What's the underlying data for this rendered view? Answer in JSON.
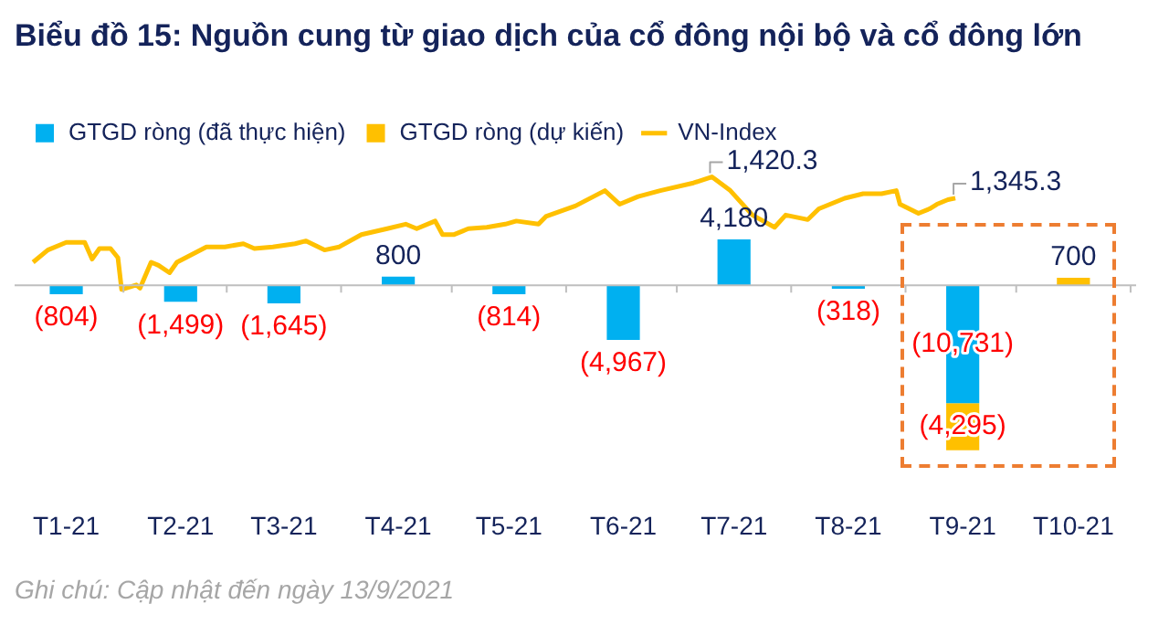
{
  "chart_data": {
    "type": "bar",
    "title": "Biểu đồ 15: Nguồn cung từ giao dịch của cổ đông nội bộ và cổ đông lớn",
    "stacked": true,
    "legend": "top left",
    "tick_labels": "x",
    "x": [
      "2021-01-15",
      "2021-02-15",
      "2021-03-15",
      "2021-04-15",
      "2021-05-15",
      "2021-06-15",
      "2021-07-15",
      "2021-08-15",
      "2021-09-15",
      "2021-10-15"
    ],
    "xlim": [
      "2021-01-01",
      "2021-11-01"
    ],
    "xticks": [
      {
        "value": "2021-01-15",
        "label": "T1-21"
      },
      {
        "value": "2021-02-15",
        "label": "T2-21"
      },
      {
        "value": "2021-03-15",
        "label": "T3-21"
      },
      {
        "value": "2021-04-15",
        "label": "T4-21"
      },
      {
        "value": "2021-05-15",
        "label": "T5-21"
      },
      {
        "value": "2021-06-15",
        "label": "T6-21"
      },
      {
        "value": "2021-07-15",
        "label": "T7-21"
      },
      {
        "value": "2021-08-15",
        "label": "T8-21"
      },
      {
        "value": "2021-09-15",
        "label": "T9-21"
      },
      {
        "value": "2021-10-15",
        "label": "T10-21"
      }
    ],
    "series": [
      {
        "name": "GTGD ròng (đã thực hiện)",
        "color": "#00b0f0",
        "values": [
          -804,
          -1499,
          -1645,
          800,
          -814,
          -4967,
          4180,
          -318,
          -10731,
          null
        ],
        "value_labels": [
          "(804)",
          "(1,499)",
          "(1,645)",
          "800",
          "(814)",
          "(4,967)",
          "4,180",
          "(318)",
          "(10,731)",
          null
        ]
      },
      {
        "name": "GTGD ròng (dự kiến)",
        "color": "#ffc000",
        "values": [
          null,
          null,
          null,
          null,
          null,
          null,
          null,
          null,
          -4295,
          700
        ],
        "value_labels": [
          null,
          null,
          null,
          null,
          null,
          null,
          null,
          null,
          "(4,295)",
          "700"
        ]
      },
      {
        "name": "VN-Index",
        "type": "line",
        "axis": "y2",
        "color": "#ffc000",
        "x": [
          "2021-01-06",
          "2021-01-10",
          "2021-01-15",
          "2021-01-20",
          "2021-01-22",
          "2021-01-24",
          "2021-01-27",
          "2021-01-29",
          "2021-01-30",
          "2021-02-03",
          "2021-02-04",
          "2021-02-07",
          "2021-02-09",
          "2021-02-12",
          "2021-02-14",
          "2021-02-22",
          "2021-02-27",
          "2021-03-04",
          "2021-03-07",
          "2021-03-12",
          "2021-03-18",
          "2021-03-21",
          "2021-03-26",
          "2021-03-30",
          "2021-04-05",
          "2021-04-12",
          "2021-04-17",
          "2021-04-20",
          "2021-04-25",
          "2021-04-27",
          "2021-04-30",
          "2021-05-04",
          "2021-05-09",
          "2021-05-14",
          "2021-05-17",
          "2021-05-23",
          "2021-05-25",
          "2021-06-02",
          "2021-06-10",
          "2021-06-14",
          "2021-06-19",
          "2021-06-25",
          "2021-07-04",
          "2021-07-09",
          "2021-07-14",
          "2021-07-20",
          "2021-07-26",
          "2021-07-29",
          "2021-08-04",
          "2021-08-07",
          "2021-08-14",
          "2021-08-19",
          "2021-08-24",
          "2021-08-28",
          "2021-08-29",
          "2021-09-03",
          "2021-09-06",
          "2021-09-08",
          "2021-09-11",
          "2021-09-13"
        ],
        "values": [
          1120,
          1163,
          1190,
          1190,
          1131,
          1168,
          1168,
          1136,
          1024,
          1040,
          1029,
          1120,
          1109,
          1083,
          1120,
          1174,
          1174,
          1185,
          1168,
          1174,
          1185,
          1195,
          1163,
          1174,
          1217,
          1238,
          1254,
          1238,
          1265,
          1217,
          1217,
          1238,
          1243,
          1254,
          1265,
          1254,
          1281,
          1318,
          1372,
          1324,
          1351,
          1372,
          1399,
          1420.3,
          1372,
          1286,
          1243,
          1286,
          1270,
          1308,
          1345,
          1361,
          1361,
          1372,
          1324,
          1292,
          1308,
          1324,
          1340,
          1345.3
        ],
        "value_labels": [
          null,
          null,
          null,
          null,
          null,
          null,
          null,
          null,
          null,
          null,
          null,
          null,
          null,
          null,
          null,
          null,
          null,
          null,
          null,
          null,
          null,
          null,
          null,
          null,
          null,
          null,
          null,
          null,
          null,
          null,
          null,
          null,
          null,
          null,
          null,
          null,
          null,
          null,
          null,
          null,
          null,
          null,
          null,
          "1,420.3",
          null,
          null,
          null,
          null,
          null,
          null,
          null,
          null,
          null,
          null,
          null,
          null,
          null,
          null,
          null,
          "1,345.3"
        ]
      }
    ],
    "annotations": [
      "Ghi chú: Cập nhật đến ngày 13/9/2021"
    ]
  }
}
